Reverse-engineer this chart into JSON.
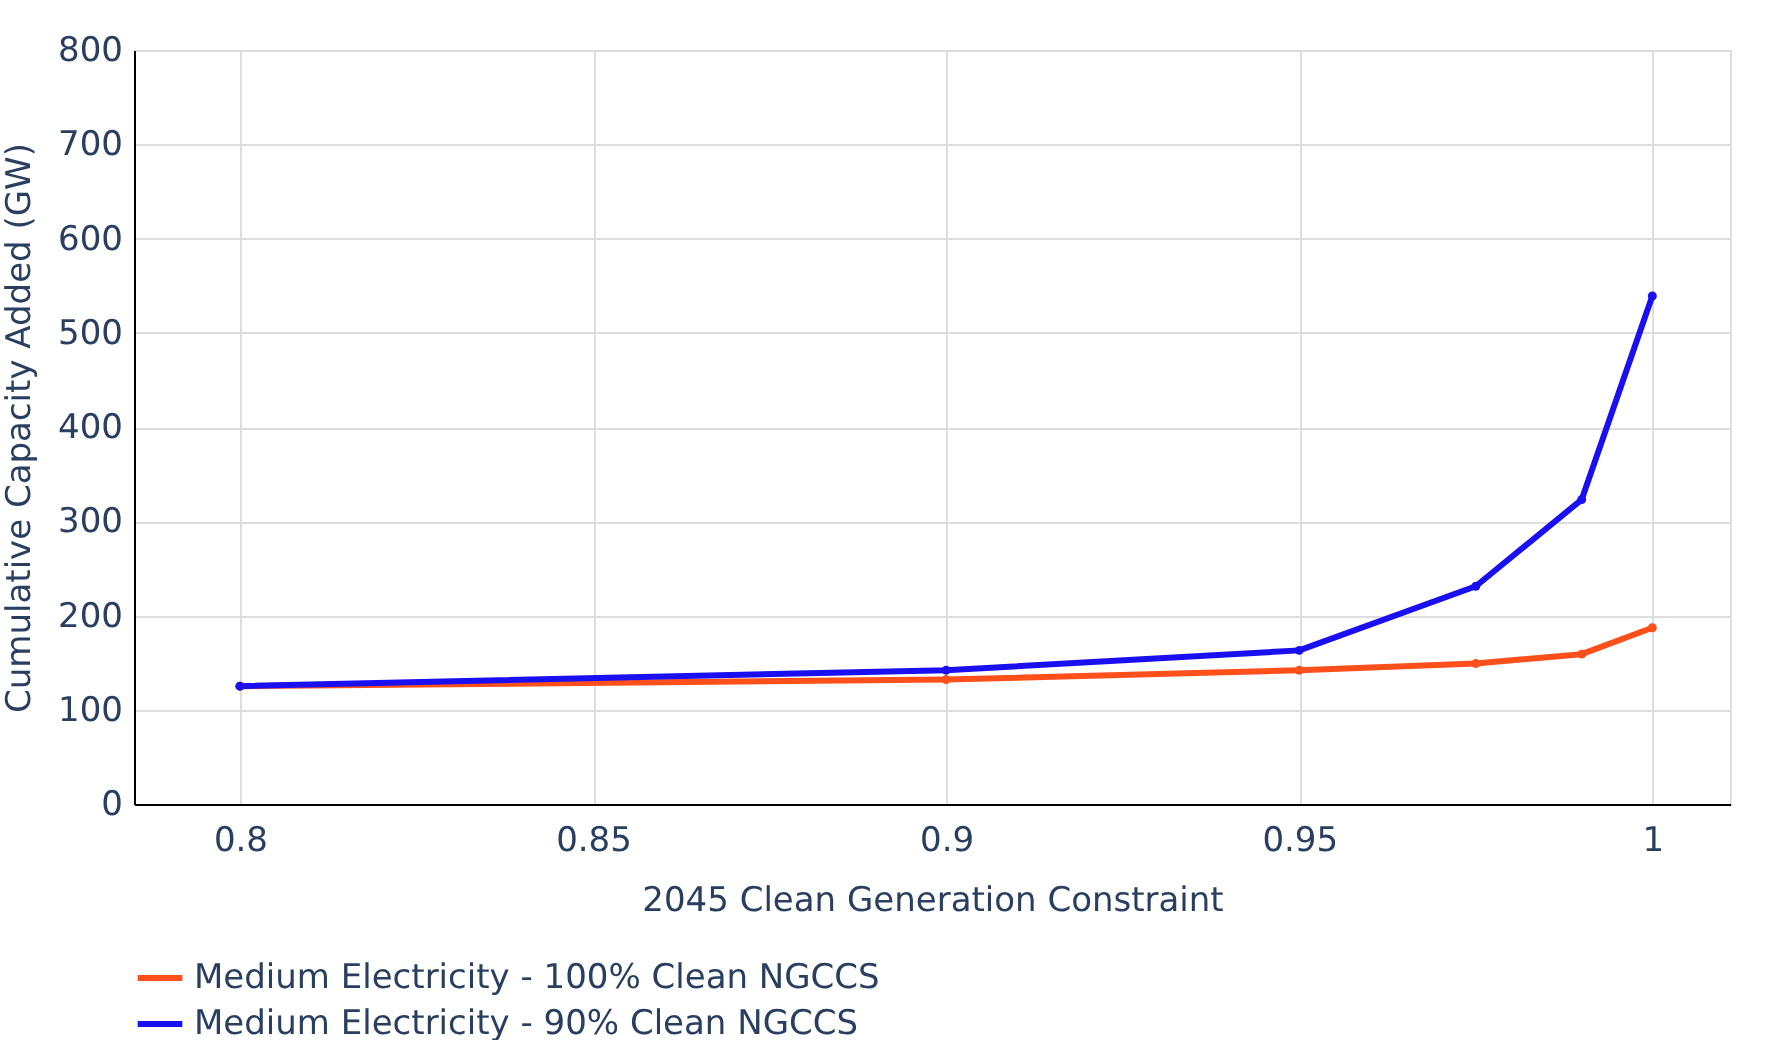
{
  "chart_data": {
    "type": "line",
    "xlabel": "2045 Clean Generation Constraint",
    "ylabel": "Cumulative Capacity Added (GW)",
    "x": [
      0.8,
      0.9,
      0.95,
      0.975,
      0.99,
      1
    ],
    "series": [
      {
        "name": "Medium Electricity - 100% Clean NGCCS",
        "color": "#ff4f1a",
        "values": [
          125,
          132,
          142,
          149,
          159,
          187
        ]
      },
      {
        "name": "Medium Electricity - 90% Clean NGCCS",
        "color": "#1a0ff0",
        "values": [
          125,
          142,
          163,
          231,
          323,
          539
        ]
      }
    ],
    "xlim": [
      0.785,
      1.011
    ],
    "xticks": [
      0.8,
      0.85,
      0.9,
      0.95,
      1
    ],
    "ylim": [
      0,
      800
    ],
    "yticks": [
      0,
      100,
      200,
      300,
      400,
      500,
      600,
      700,
      800
    ],
    "grid": true,
    "legend": "bottom",
    "marker": "circle",
    "line_style": "solid"
  }
}
